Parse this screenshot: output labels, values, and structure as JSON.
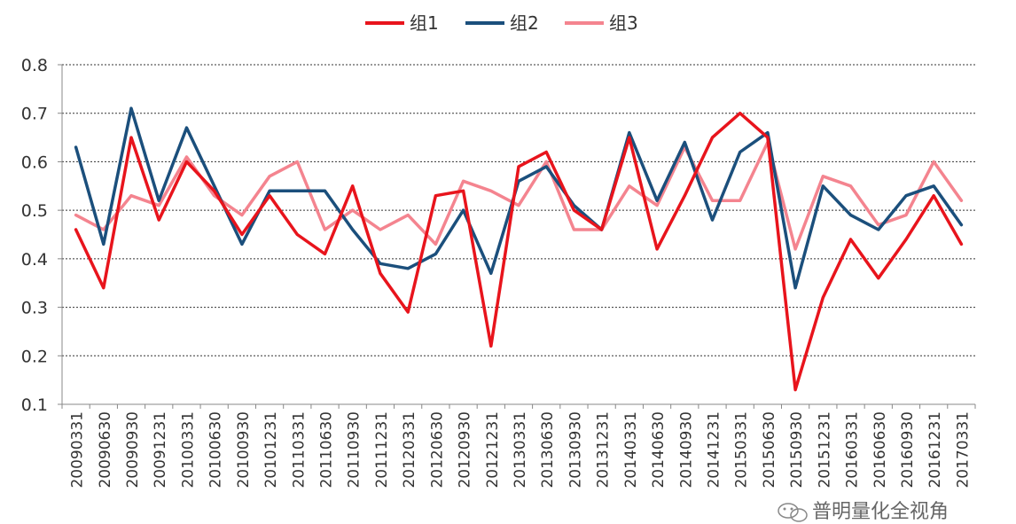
{
  "chart_data": {
    "type": "line",
    "title": "",
    "xlabel": "",
    "ylabel": "",
    "ylim": [
      0.1,
      0.8
    ],
    "yticks": [
      "0.1",
      "0.2",
      "0.3",
      "0.4",
      "0.5",
      "0.6",
      "0.7",
      "0.8"
    ],
    "grid": true,
    "legend_position": "top-center",
    "categories": [
      "20090331",
      "20090630",
      "20090930",
      "20091231",
      "20100331",
      "20100630",
      "20100930",
      "20101231",
      "20110331",
      "20110630",
      "20110930",
      "20111231",
      "20120331",
      "20120630",
      "20120930",
      "20121231",
      "20130331",
      "20130630",
      "20130930",
      "20131231",
      "20140331",
      "20140630",
      "20140930",
      "20141231",
      "20150331",
      "20150630",
      "20150930",
      "20151231",
      "20160331",
      "20160630",
      "20160930",
      "20161231",
      "20170331"
    ],
    "series": [
      {
        "name": "组1",
        "color": "#e8141c",
        "values": [
          0.46,
          0.34,
          0.65,
          0.48,
          0.6,
          0.54,
          0.45,
          0.53,
          0.45,
          0.41,
          0.55,
          0.37,
          0.29,
          0.53,
          0.54,
          0.22,
          0.59,
          0.62,
          0.5,
          0.46,
          0.65,
          0.42,
          0.53,
          0.65,
          0.7,
          0.65,
          0.13,
          0.32,
          0.44,
          0.36,
          0.44,
          0.53,
          0.43
        ]
      },
      {
        "name": "组2",
        "color": "#1b4f7c",
        "values": [
          0.63,
          0.43,
          0.71,
          0.52,
          0.67,
          0.55,
          0.43,
          0.54,
          0.54,
          0.54,
          0.46,
          0.39,
          0.38,
          0.41,
          0.5,
          0.37,
          0.56,
          0.59,
          0.51,
          0.46,
          0.66,
          0.52,
          0.64,
          0.48,
          0.62,
          0.66,
          0.34,
          0.55,
          0.49,
          0.46,
          0.53,
          0.55,
          0.47
        ]
      },
      {
        "name": "组3",
        "color": "#f4848f",
        "values": [
          0.49,
          0.46,
          0.53,
          0.51,
          0.61,
          0.53,
          0.49,
          0.57,
          0.6,
          0.46,
          0.5,
          0.46,
          0.49,
          0.43,
          0.56,
          0.54,
          0.51,
          0.6,
          0.46,
          0.46,
          0.55,
          0.51,
          0.63,
          0.52,
          0.52,
          0.64,
          0.42,
          0.57,
          0.55,
          0.47,
          0.49,
          0.6,
          0.52
        ]
      }
    ]
  },
  "watermark": {
    "text": "普明量化全视角",
    "icon": "wechat-icon"
  }
}
